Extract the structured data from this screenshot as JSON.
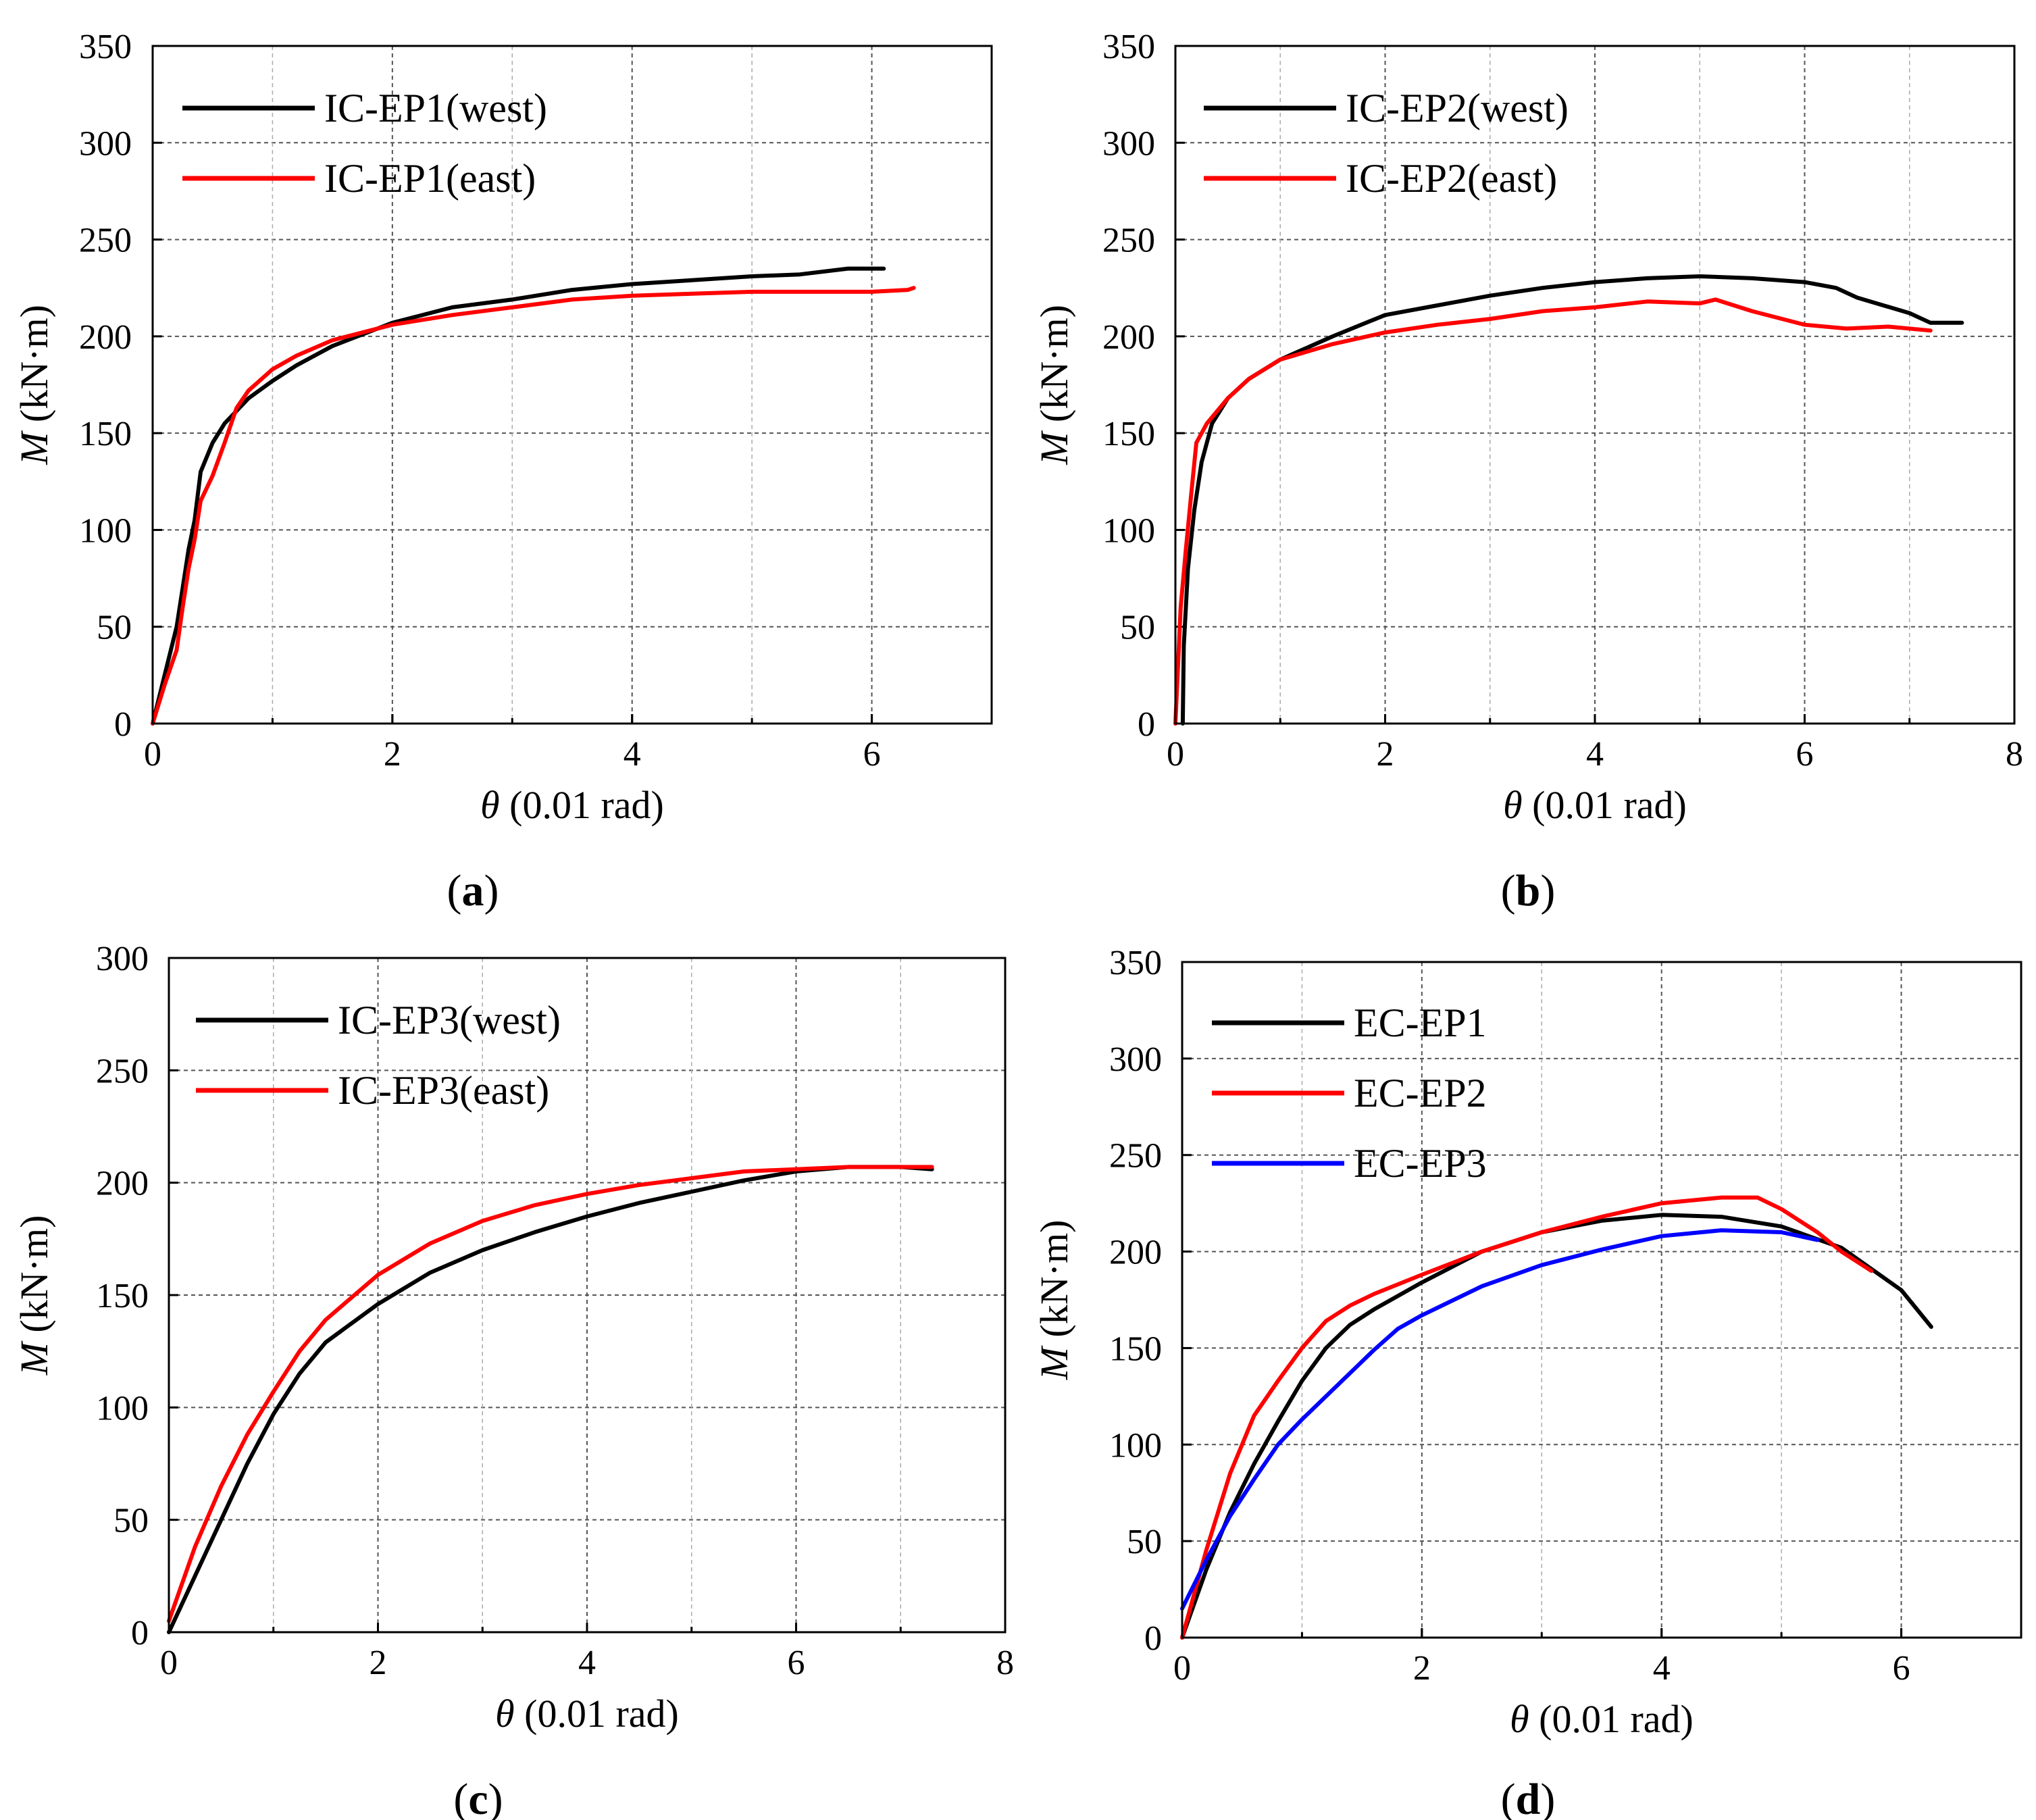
{
  "colors": {
    "black": "#000000",
    "red": "#ff0000",
    "blue": "#0000ff",
    "grid": "#555555"
  },
  "chart_data": [
    {
      "id": "a",
      "type": "line",
      "panel_label": "a",
      "xlabel_var": "θ",
      "xlabel_unit": " (0.01 rad)",
      "ylabel_var": "M",
      "ylabel_unit": " (kN·m)",
      "xlim": [
        0,
        7
      ],
      "ylim": [
        0,
        350
      ],
      "xticks": [
        0,
        2,
        4,
        6
      ],
      "xtick_labels": [
        "0",
        "2",
        "4",
        "6"
      ],
      "yticks": [
        0,
        50,
        100,
        150,
        200,
        250,
        300,
        350
      ],
      "ytick_labels": [
        "0",
        "50",
        "100",
        "150",
        "200",
        "250",
        "300",
        "350"
      ],
      "grid": true,
      "legend_position": "top-left",
      "series": [
        {
          "name": "IC-EP1(west)",
          "color": "#000000",
          "x": [
            0,
            0.1,
            0.2,
            0.25,
            0.3,
            0.35,
            0.4,
            0.5,
            0.6,
            0.8,
            1.0,
            1.2,
            1.5,
            2.0,
            2.5,
            3.0,
            3.5,
            4.0,
            4.5,
            5.0,
            5.4,
            5.8,
            6.1
          ],
          "y": [
            0,
            25,
            50,
            70,
            90,
            105,
            130,
            145,
            155,
            168,
            177,
            185,
            195,
            207,
            215,
            219,
            224,
            227,
            229,
            231,
            232,
            235,
            235
          ]
        },
        {
          "name": "IC-EP1(east)",
          "color": "#ff0000",
          "x": [
            0,
            0.1,
            0.2,
            0.25,
            0.3,
            0.35,
            0.4,
            0.5,
            0.6,
            0.7,
            0.8,
            1.0,
            1.2,
            1.5,
            2.0,
            2.5,
            3.0,
            3.5,
            4.0,
            4.5,
            5.0,
            5.5,
            6.0,
            6.3,
            6.35
          ],
          "y": [
            0,
            20,
            38,
            60,
            80,
            95,
            115,
            128,
            145,
            163,
            172,
            183,
            190,
            198,
            206,
            211,
            215,
            219,
            221,
            222,
            223,
            223,
            223,
            224,
            225
          ]
        }
      ]
    },
    {
      "id": "b",
      "type": "line",
      "panel_label": "b",
      "xlabel_var": "θ",
      "xlabel_unit": " (0.01 rad)",
      "ylabel_var": "M",
      "ylabel_unit": " (kN·m)",
      "xlim": [
        0,
        8
      ],
      "ylim": [
        0,
        350
      ],
      "xticks": [
        0,
        2,
        4,
        6,
        8
      ],
      "xtick_labels": [
        "0",
        "2",
        "4",
        "6",
        "8"
      ],
      "yticks": [
        0,
        50,
        100,
        150,
        200,
        250,
        300,
        350
      ],
      "ytick_labels": [
        "0",
        "50",
        "100",
        "150",
        "200",
        "250",
        "300",
        "350"
      ],
      "grid": true,
      "legend_position": "top-left",
      "series": [
        {
          "name": "IC-EP2(west)",
          "color": "#000000",
          "x": [
            0.07,
            0.08,
            0.12,
            0.18,
            0.25,
            0.35,
            0.5,
            0.7,
            1.0,
            1.5,
            2.0,
            2.5,
            3.0,
            3.5,
            4.0,
            4.5,
            5.0,
            5.5,
            6.0,
            6.3,
            6.5,
            7.0,
            7.2,
            7.5
          ],
          "y": [
            0,
            40,
            80,
            110,
            135,
            155,
            168,
            178,
            188,
            200,
            211,
            216,
            221,
            225,
            228,
            230,
            231,
            230,
            228,
            225,
            220,
            212,
            207,
            207
          ]
        },
        {
          "name": "IC-EP2(east)",
          "color": "#ff0000",
          "x": [
            0,
            0.05,
            0.1,
            0.15,
            0.2,
            0.3,
            0.5,
            0.7,
            1.0,
            1.5,
            2.0,
            2.5,
            3.0,
            3.5,
            4.0,
            4.5,
            5.0,
            5.15,
            5.5,
            6.0,
            6.4,
            6.8,
            7.2
          ],
          "y": [
            0,
            60,
            90,
            118,
            145,
            155,
            168,
            178,
            188,
            196,
            202,
            206,
            209,
            213,
            215,
            218,
            217,
            219,
            213,
            206,
            204,
            205,
            203
          ]
        }
      ]
    },
    {
      "id": "c",
      "type": "line",
      "panel_label": "c",
      "xlabel_var": "θ",
      "xlabel_unit": " (0.01 rad)",
      "ylabel_var": "M",
      "ylabel_unit": " (kN·m)",
      "xlim": [
        0,
        8
      ],
      "ylim": [
        0,
        300
      ],
      "xticks": [
        0,
        2,
        4,
        6,
        8
      ],
      "xtick_labels": [
        "0",
        "2",
        "4",
        "6",
        "8"
      ],
      "yticks": [
        0,
        50,
        100,
        150,
        200,
        250,
        300
      ],
      "ytick_labels": [
        "0",
        "50",
        "100",
        "150",
        "200",
        "250",
        "300"
      ],
      "grid": true,
      "legend_position": "top-left",
      "series": [
        {
          "name": "IC-EP3(west)",
          "color": "#000000",
          "x": [
            0,
            0.25,
            0.5,
            0.75,
            1.0,
            1.25,
            1.5,
            2.0,
            2.5,
            3.0,
            3.5,
            4.0,
            4.5,
            5.0,
            5.5,
            6.0,
            6.5,
            7.0,
            7.3
          ],
          "y": [
            0,
            25,
            50,
            75,
            97,
            115,
            129,
            146,
            160,
            170,
            178,
            185,
            191,
            196,
            201,
            205,
            207,
            207,
            206
          ]
        },
        {
          "name": "IC-EP3(east)",
          "color": "#ff0000",
          "x": [
            0,
            0.25,
            0.5,
            0.75,
            1.0,
            1.25,
            1.5,
            2.0,
            2.5,
            3.0,
            3.5,
            4.0,
            4.5,
            5.0,
            5.5,
            6.0,
            6.5,
            7.0,
            7.3
          ],
          "y": [
            5,
            38,
            65,
            88,
            107,
            125,
            139,
            159,
            173,
            183,
            190,
            195,
            199,
            202,
            205,
            206,
            207,
            207,
            207
          ]
        }
      ]
    },
    {
      "id": "d",
      "type": "line",
      "panel_label": "d",
      "xlabel_var": "θ",
      "xlabel_unit": " (0.01 rad)",
      "ylabel_var": "M",
      "ylabel_unit": " (kN·m)",
      "xlim": [
        0,
        7
      ],
      "ylim": [
        0,
        350
      ],
      "xticks": [
        0,
        2,
        4,
        6
      ],
      "xtick_labels": [
        "0",
        "2",
        "4",
        "6"
      ],
      "yticks": [
        0,
        50,
        100,
        150,
        200,
        250,
        300,
        350
      ],
      "ytick_labels": [
        "0",
        "50",
        "100",
        "150",
        "200",
        "250",
        "300",
        "350"
      ],
      "grid": true,
      "legend_position": "top-left",
      "series": [
        {
          "name": "EC-EP1",
          "color": "#000000",
          "x": [
            0,
            0.2,
            0.4,
            0.6,
            0.8,
            1.0,
            1.2,
            1.4,
            1.6,
            2.0,
            2.5,
            3.0,
            3.5,
            4.0,
            4.5,
            5.0,
            5.5,
            6.0,
            6.25
          ],
          "y": [
            0,
            35,
            65,
            90,
            112,
            133,
            150,
            162,
            170,
            184,
            200,
            210,
            216,
            219,
            218,
            213,
            202,
            180,
            161
          ]
        },
        {
          "name": "EC-EP2",
          "color": "#ff0000",
          "x": [
            0,
            0.2,
            0.4,
            0.6,
            0.8,
            1.0,
            1.2,
            1.4,
            1.6,
            2.0,
            2.5,
            3.0,
            3.5,
            4.0,
            4.5,
            4.8,
            5.0,
            5.3,
            5.5,
            5.75
          ],
          "y": [
            0,
            45,
            85,
            115,
            133,
            150,
            164,
            172,
            178,
            188,
            200,
            210,
            218,
            225,
            228,
            228,
            222,
            210,
            200,
            190
          ]
        },
        {
          "name": "EC-EP3",
          "color": "#0000ff",
          "x": [
            0,
            0.2,
            0.4,
            0.6,
            0.8,
            1.0,
            1.2,
            1.4,
            1.6,
            1.8,
            2.0,
            2.5,
            3.0,
            3.5,
            4.0,
            4.5,
            5.0,
            5.3
          ],
          "y": [
            15,
            40,
            63,
            82,
            100,
            113,
            125,
            137,
            149,
            160,
            167,
            182,
            193,
            201,
            208,
            211,
            210,
            206
          ]
        }
      ]
    }
  ]
}
